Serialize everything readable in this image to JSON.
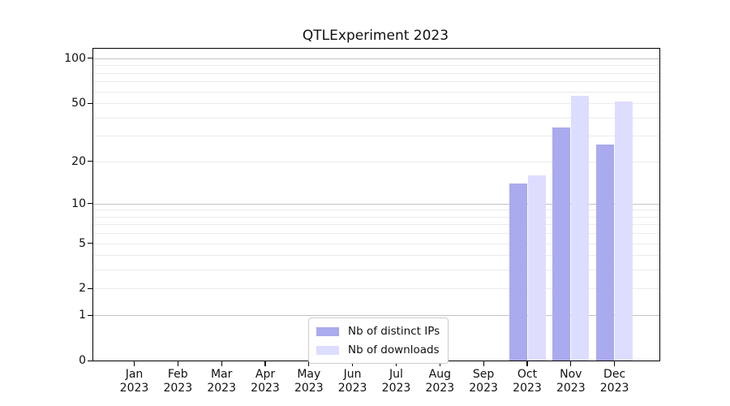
{
  "chart_data": {
    "type": "bar",
    "title": "QTLExperiment 2023",
    "xlabel": "",
    "ylabel": "",
    "categories": [
      "Jan 2023",
      "Feb 2023",
      "Mar 2023",
      "Apr 2023",
      "May 2023",
      "Jun 2023",
      "Jul 2023",
      "Aug 2023",
      "Sep 2023",
      "Oct 2023",
      "Nov 2023",
      "Dec 2023"
    ],
    "series": [
      {
        "name": "Nb of distinct IPs",
        "color": "#aaaaee",
        "values": [
          null,
          null,
          null,
          null,
          null,
          null,
          null,
          null,
          null,
          14,
          34,
          26
        ]
      },
      {
        "name": "Nb of downloads",
        "color": "#ddddff",
        "values": [
          null,
          null,
          null,
          null,
          null,
          null,
          null,
          null,
          null,
          16,
          56,
          51
        ]
      }
    ],
    "y_scale": "log10(1+x)",
    "ylim": [
      0,
      116
    ],
    "y_ticks": [
      100,
      50,
      20,
      10,
      5,
      2,
      1,
      0
    ],
    "y_major_gridlines": [
      1,
      10,
      100
    ],
    "y_minor_gridlines": [
      2,
      3,
      4,
      5,
      6,
      7,
      8,
      9,
      20,
      30,
      40,
      50,
      60,
      70,
      80,
      90
    ],
    "grid": true,
    "legend_position": "lower center"
  }
}
